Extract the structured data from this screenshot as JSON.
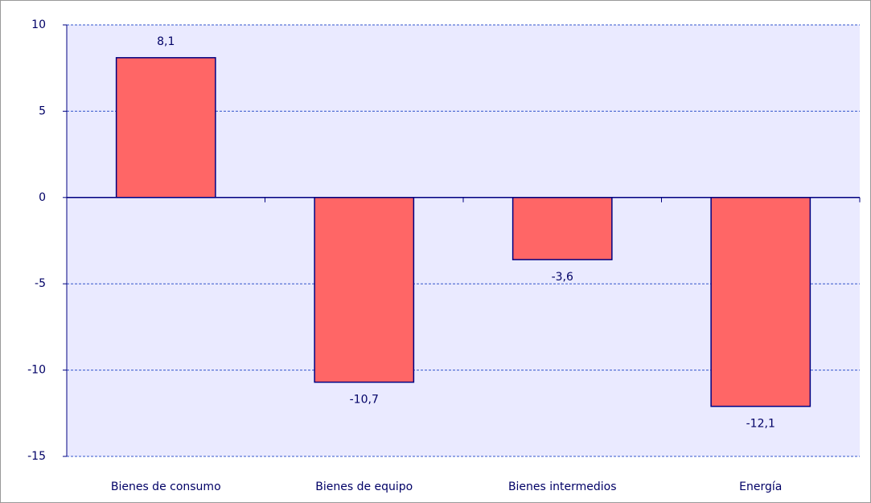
{
  "chart_data": {
    "type": "bar",
    "categories": [
      "Bienes de consumo",
      "Bienes de equipo",
      "Bienes intermedios",
      "Energía"
    ],
    "values": [
      8.1,
      -10.7,
      -3.6,
      -12.1
    ],
    "value_labels": [
      "8,1",
      "-10,7",
      "-3,6",
      "-12,1"
    ],
    "color": "#ff6666",
    "ylim": [
      -15,
      10
    ],
    "yticks": [
      -15,
      -10,
      -5,
      0,
      5,
      10
    ],
    "grid": true
  }
}
